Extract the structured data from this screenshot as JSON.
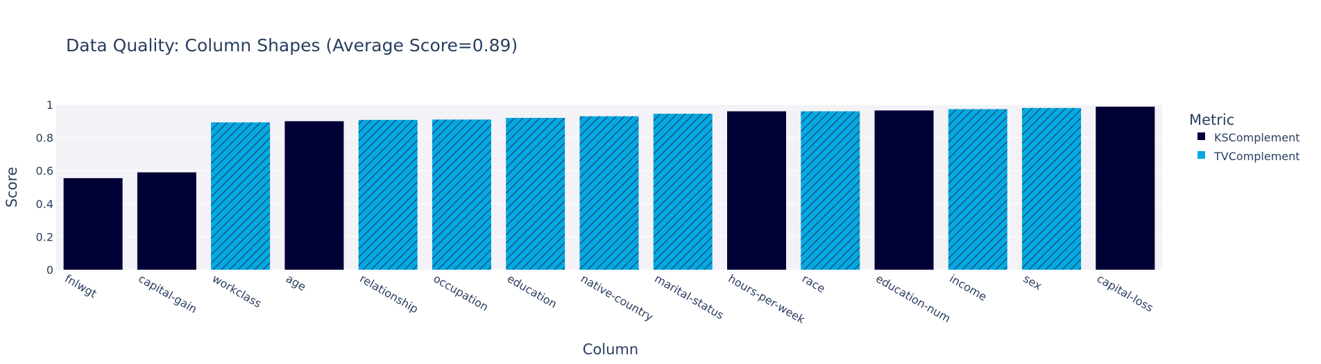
{
  "chart_data": {
    "type": "bar",
    "title": "Data Quality: Column Shapes (Average Score=0.89)",
    "xlabel": "Column",
    "ylabel": "Score",
    "ylim": [
      0,
      1
    ],
    "yticks": [
      "0",
      "0.2",
      "0.4",
      "0.6",
      "0.8",
      "1"
    ],
    "grid": true,
    "legend": {
      "title": "Metric",
      "placement": "right",
      "entries": [
        {
          "name": "KSComplement",
          "color": "#000036",
          "pattern": "none"
        },
        {
          "name": "TVComplement",
          "color": "#03a9e5",
          "pattern": "diagonal-hatch"
        }
      ]
    },
    "categories": [
      "fnlwgt",
      "capital-gain",
      "workclass",
      "age",
      "relationship",
      "occupation",
      "education",
      "native-country",
      "marital-status",
      "hours-per-week",
      "race",
      "education-num",
      "income",
      "sex",
      "capital-loss"
    ],
    "bars": [
      {
        "column": "fnlwgt",
        "metric": "KSComplement",
        "value": 0.555
      },
      {
        "column": "capital-gain",
        "metric": "KSComplement",
        "value": 0.59
      },
      {
        "column": "workclass",
        "metric": "TVComplement",
        "value": 0.893
      },
      {
        "column": "age",
        "metric": "KSComplement",
        "value": 0.9
      },
      {
        "column": "relationship",
        "metric": "TVComplement",
        "value": 0.908
      },
      {
        "column": "occupation",
        "metric": "TVComplement",
        "value": 0.91
      },
      {
        "column": "education",
        "metric": "TVComplement",
        "value": 0.92
      },
      {
        "column": "native-country",
        "metric": "TVComplement",
        "value": 0.93
      },
      {
        "column": "marital-status",
        "metric": "TVComplement",
        "value": 0.945
      },
      {
        "column": "hours-per-week",
        "metric": "KSComplement",
        "value": 0.96
      },
      {
        "column": "race",
        "metric": "TVComplement",
        "value": 0.96
      },
      {
        "column": "education-num",
        "metric": "KSComplement",
        "value": 0.965
      },
      {
        "column": "income",
        "metric": "TVComplement",
        "value": 0.973
      },
      {
        "column": "sex",
        "metric": "TVComplement",
        "value": 0.98
      },
      {
        "column": "capital-loss",
        "metric": "KSComplement",
        "value": 0.988
      }
    ]
  }
}
